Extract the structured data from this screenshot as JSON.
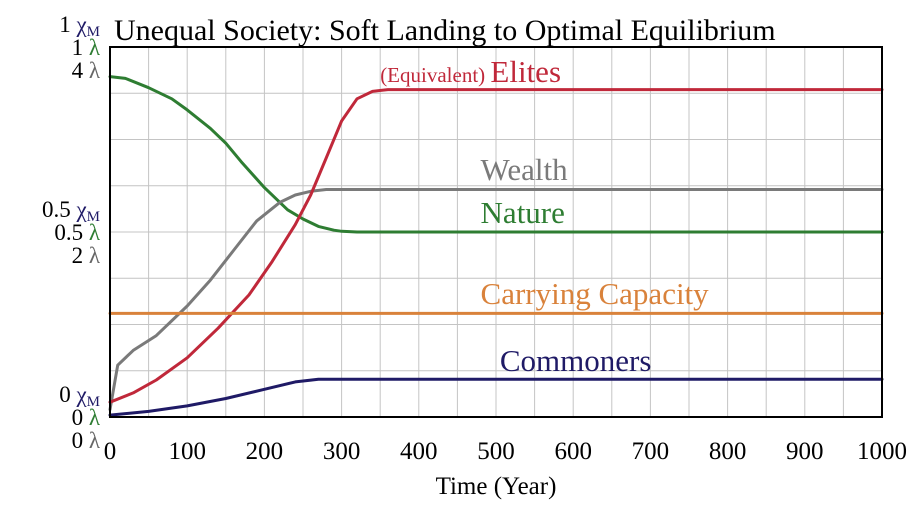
{
  "chart_data": {
    "type": "line",
    "title": "Unequal Society: Soft Landing to Optimal Equilibrium",
    "xlabel": "Time (Year)",
    "xlim": [
      0,
      1000
    ],
    "x_ticks": [
      "0",
      "100",
      "200",
      "300",
      "400",
      "500",
      "600",
      "700",
      "800",
      "900",
      "1000"
    ],
    "y_axis_groups": [
      {
        "level": "top",
        "labels": [
          {
            "num": "1",
            "sym": "χ",
            "sub": "M",
            "color": "#1f1a66"
          },
          {
            "num": "1",
            "sym": "λ",
            "sub": "",
            "color": "#2e7d32"
          },
          {
            "num": "4",
            "sym": "λ",
            "sub": "",
            "color": "#666666"
          }
        ]
      },
      {
        "level": "middle",
        "labels": [
          {
            "num": "0.5",
            "sym": "χ",
            "sub": "M",
            "color": "#1f1a66"
          },
          {
            "num": "0.5",
            "sym": "λ",
            "sub": "",
            "color": "#2e7d32"
          },
          {
            "num": "2",
            "sym": "λ",
            "sub": "",
            "color": "#666666"
          }
        ]
      },
      {
        "level": "bottom",
        "labels": [
          {
            "num": "0",
            "sym": "χ",
            "sub": "M",
            "color": "#1f1a66"
          },
          {
            "num": "0",
            "sym": "λ",
            "sub": "",
            "color": "#2e7d32"
          },
          {
            "num": "0",
            "sym": "λ",
            "sub": "",
            "color": "#666666"
          }
        ]
      }
    ],
    "ylim": [
      0,
      1
    ],
    "grid": true,
    "series": [
      {
        "name": "Nature",
        "color": "#2e7d32",
        "x": [
          0,
          20,
          50,
          80,
          100,
          130,
          150,
          170,
          200,
          230,
          250,
          270,
          290,
          300,
          320,
          350,
          400,
          500,
          600,
          700,
          800,
          900,
          1000
        ],
        "y": [
          0.92,
          0.915,
          0.89,
          0.86,
          0.83,
          0.78,
          0.74,
          0.69,
          0.62,
          0.56,
          0.535,
          0.515,
          0.505,
          0.502,
          0.5,
          0.5,
          0.5,
          0.5,
          0.5,
          0.5,
          0.5,
          0.5,
          0.5
        ]
      },
      {
        "name": "Wealth",
        "color": "#7a7a7a",
        "x": [
          0,
          10,
          30,
          60,
          100,
          130,
          160,
          190,
          220,
          240,
          260,
          280,
          300,
          400,
          500,
          600,
          700,
          800,
          900,
          1000
        ],
        "y": [
          0.02,
          0.14,
          0.18,
          0.22,
          0.3,
          0.37,
          0.45,
          0.53,
          0.58,
          0.6,
          0.61,
          0.615,
          0.615,
          0.615,
          0.615,
          0.615,
          0.615,
          0.615,
          0.615,
          0.615
        ]
      },
      {
        "name": "(Equivalent) Elites",
        "color": "#c0283a",
        "x": [
          0,
          30,
          60,
          100,
          140,
          180,
          210,
          240,
          260,
          280,
          300,
          320,
          340,
          360,
          400,
          500,
          600,
          700,
          800,
          900,
          1000
        ],
        "y": [
          0.04,
          0.065,
          0.1,
          0.16,
          0.24,
          0.33,
          0.42,
          0.52,
          0.6,
          0.7,
          0.8,
          0.86,
          0.88,
          0.885,
          0.885,
          0.885,
          0.885,
          0.885,
          0.885,
          0.885,
          0.885
        ]
      },
      {
        "name": "Carrying Capacity",
        "color": "#d9823b",
        "x": [
          0,
          1000
        ],
        "y": [
          0.28,
          0.28
        ]
      },
      {
        "name": "Commoners",
        "color": "#1f1a66",
        "x": [
          0,
          50,
          100,
          150,
          200,
          240,
          270,
          300,
          400,
          500,
          600,
          700,
          800,
          900,
          1000
        ],
        "y": [
          0.005,
          0.015,
          0.03,
          0.05,
          0.075,
          0.095,
          0.102,
          0.102,
          0.102,
          0.102,
          0.102,
          0.102,
          0.102,
          0.102,
          0.102
        ]
      }
    ],
    "annotations": [
      {
        "series": "(Equivalent) Elites",
        "prefix": "(Equivalent)",
        "main": "Elites",
        "color": "#c0283a",
        "x": 350,
        "y": 0.905
      },
      {
        "series": "Wealth",
        "text": "Wealth",
        "color": "#7a7a7a",
        "x": 480,
        "y": 0.64
      },
      {
        "series": "Nature",
        "text": "Nature",
        "color": "#2e7d32",
        "x": 480,
        "y": 0.525
      },
      {
        "series": "Carrying Capacity",
        "text": "Carrying Capacity",
        "color": "#d9823b",
        "x": 480,
        "y": 0.305
      },
      {
        "series": "Commoners",
        "text": "Commoners",
        "color": "#1f1a66",
        "x": 505,
        "y": 0.125
      }
    ]
  }
}
